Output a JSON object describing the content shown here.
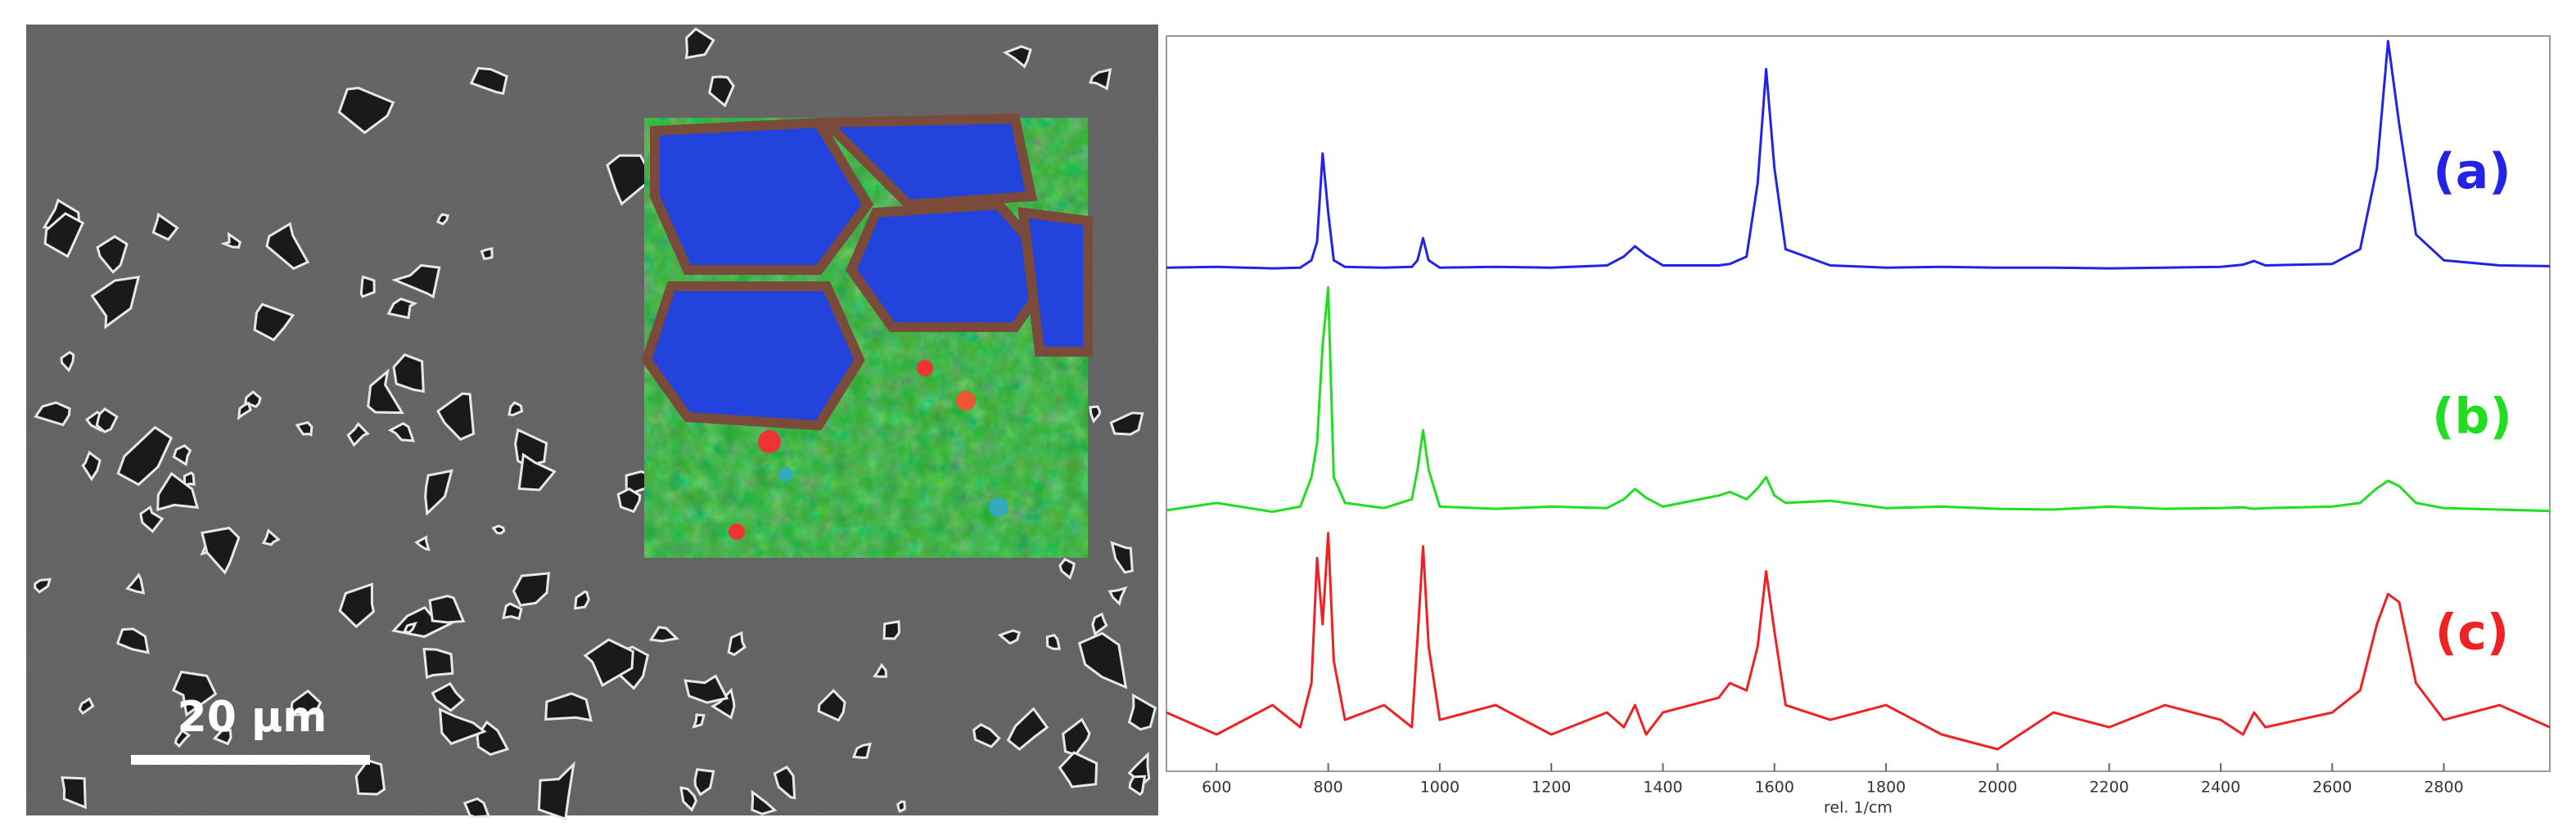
{
  "image": {
    "scale_bar": "20 µm"
  },
  "chart_data": {
    "type": "line",
    "xlabel": "rel. 1/cm",
    "x": [
      510,
      600,
      700,
      750,
      770,
      780,
      790,
      800,
      810,
      830,
      900,
      950,
      960,
      970,
      980,
      1000,
      1100,
      1200,
      1300,
      1330,
      1350,
      1370,
      1400,
      1500,
      1520,
      1550,
      1570,
      1585,
      1600,
      1620,
      1700,
      1800,
      1900,
      2000,
      2100,
      2200,
      2300,
      2400,
      2440,
      2460,
      2480,
      2600,
      2650,
      2680,
      2700,
      2720,
      2750,
      2800,
      2900,
      2990
    ],
    "xlim": [
      510,
      2990
    ],
    "xticks": [
      600,
      800,
      1000,
      1200,
      1400,
      1600,
      1800,
      2000,
      2200,
      2400,
      2600,
      2800
    ],
    "ylim": [
      0,
      100
    ],
    "series": [
      {
        "name": "(a)",
        "color": "#2323e6",
        "values": [
          68.5,
          68.6,
          68.4,
          68.5,
          69.5,
          72,
          84,
          76,
          69.5,
          68.6,
          68.5,
          68.6,
          69.5,
          72.5,
          69.5,
          68.5,
          68.6,
          68.5,
          68.8,
          70,
          71.4,
          70.2,
          68.8,
          68.8,
          69,
          70,
          80,
          95.5,
          82,
          71,
          68.8,
          68.5,
          68.6,
          68.5,
          68.5,
          68.4,
          68.5,
          68.6,
          68.9,
          69.4,
          68.8,
          69,
          71,
          82,
          99.3,
          88,
          73,
          69.5,
          68.8,
          68.7
        ]
      },
      {
        "name": "(b)",
        "color": "#22dd22",
        "values": [
          35.5,
          36.5,
          35.3,
          36,
          40,
          44.6,
          58,
          65.8,
          40,
          36.5,
          35.8,
          37,
          41,
          46.4,
          41,
          36,
          35.7,
          36,
          35.8,
          37,
          38.4,
          37.2,
          36,
          37.5,
          38,
          37,
          38.5,
          40,
          37.5,
          36.5,
          36.8,
          35.8,
          36,
          35.7,
          35.6,
          36,
          35.7,
          35.8,
          35.9,
          35.7,
          35.8,
          36,
          36.5,
          38.5,
          39.5,
          38.8,
          36.5,
          35.8,
          35.6,
          35.4
        ]
      },
      {
        "name": "(c)",
        "color": "#ee2222",
        "values": [
          8,
          5,
          9,
          6,
          12,
          29,
          20,
          32.4,
          15,
          7,
          9,
          6,
          18,
          30.6,
          17,
          7,
          9,
          5,
          8,
          6,
          9,
          5,
          8,
          10,
          12,
          11,
          17,
          27.2,
          19,
          9,
          7,
          9,
          5,
          3,
          8,
          6,
          9,
          7,
          5,
          8,
          6,
          8,
          11,
          20,
          24.1,
          23,
          12,
          7,
          9,
          6
        ]
      }
    ]
  }
}
